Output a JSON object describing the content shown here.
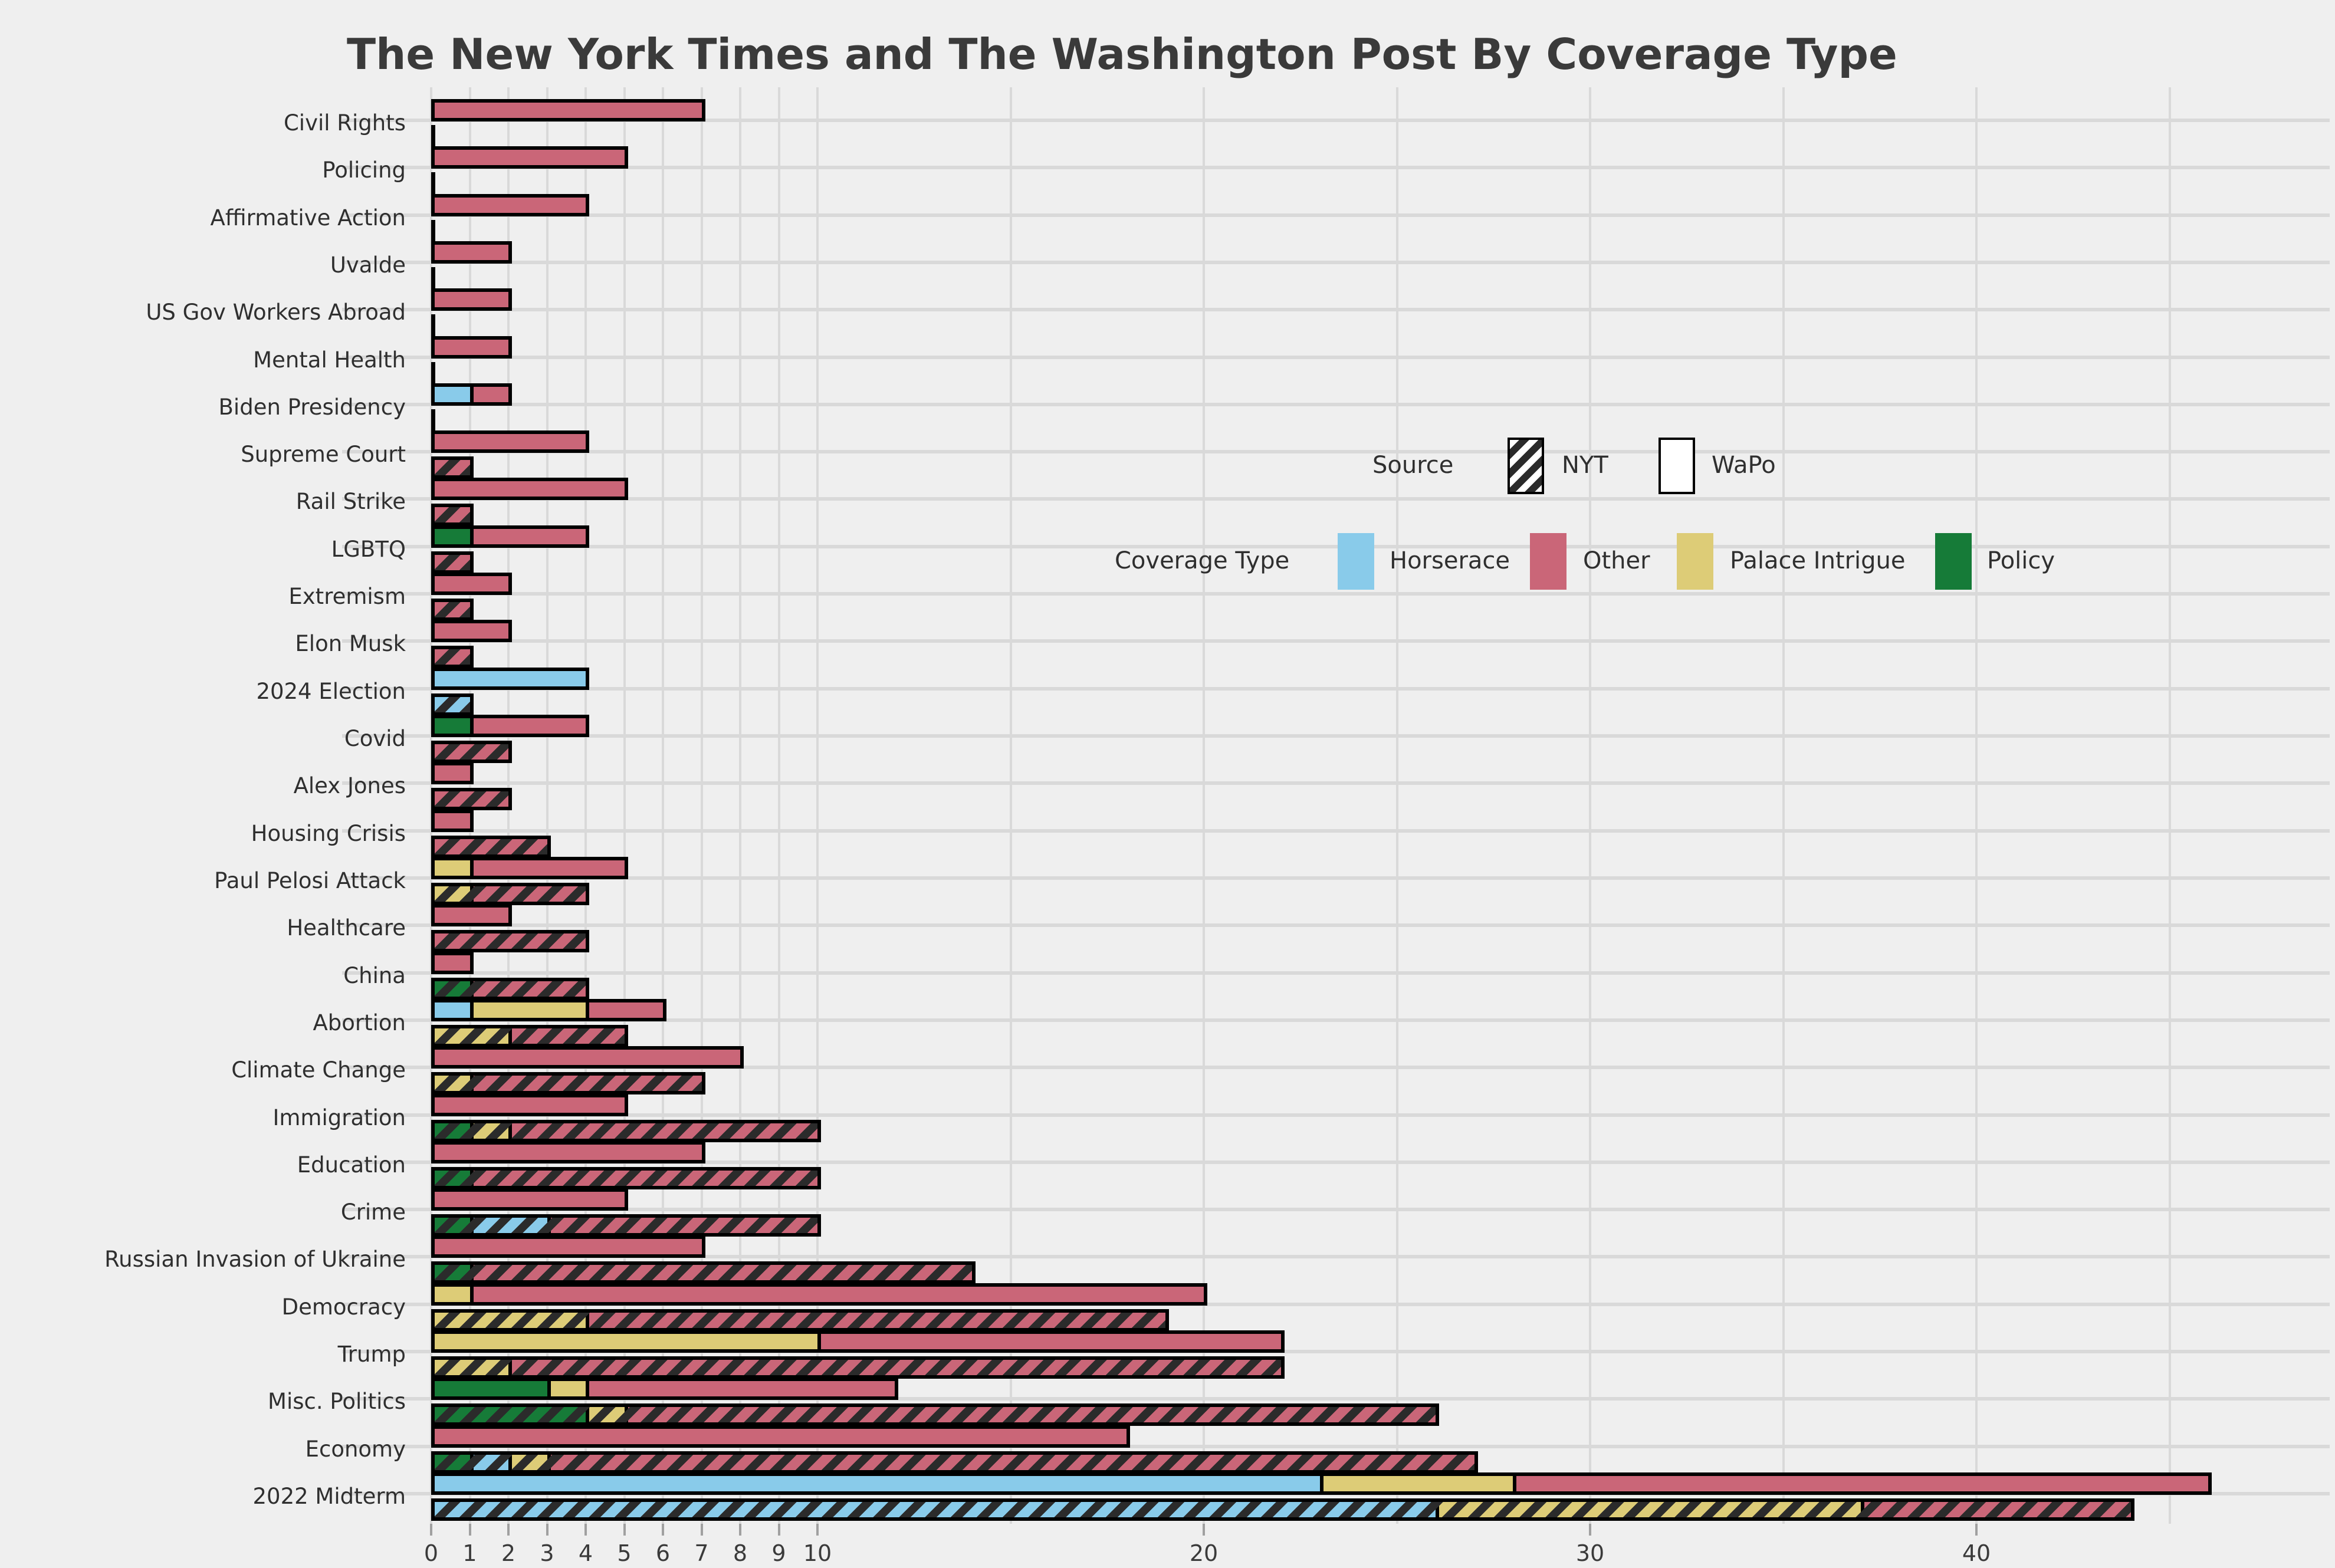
{
  "title": "The New York Times and The Washington Post By Coverage Type",
  "source_legend": {
    "label": "Source",
    "items": [
      {
        "name": "NYT",
        "style": "hatched"
      },
      {
        "name": "WaPo",
        "style": "plain"
      }
    ]
  },
  "coverage_legend": {
    "label": "Coverage Type",
    "items": [
      {
        "key": "horserace",
        "name": "Horserace",
        "color": "#89cbea"
      },
      {
        "key": "other",
        "name": "Other",
        "color": "#ca6678"
      },
      {
        "key": "palace_intrigue",
        "name": "Palace Intrigue",
        "color": "#ddcc77"
      },
      {
        "key": "policy",
        "name": "Policy",
        "color": "#167b38"
      }
    ]
  },
  "x_axis": {
    "tick_labels": [
      "0",
      "1",
      "2",
      "3",
      "4",
      "5",
      "6",
      "7",
      "8",
      "9",
      "10",
      "20",
      "30",
      "40"
    ],
    "tick_values": [
      0,
      1,
      2,
      3,
      4,
      5,
      6,
      7,
      8,
      9,
      10,
      20,
      30,
      40
    ],
    "minor_gridlines": [
      15,
      25,
      35,
      45
    ]
  },
  "chart_data": {
    "type": "bar",
    "orientation": "horizontal",
    "title": "The New York Times and The Washington Post By Coverage Type",
    "xlabel": "",
    "ylabel": "",
    "xlim": [
      0,
      48.5
    ],
    "grid": true,
    "stack_order": [
      "policy",
      "horserace",
      "palace_intrigue",
      "other"
    ],
    "series_colors": {
      "horserace": "#89cbea",
      "other": "#ca6678",
      "palace_intrigue": "#ddcc77",
      "policy": "#167b38"
    },
    "bar_groups": [
      "WaPo (solid, top bar)",
      "NYT (hatched, bottom bar)"
    ],
    "categories": [
      {
        "label": "Civil Rights",
        "wapo": {
          "other": 7
        },
        "nyt": {}
      },
      {
        "label": "Policing",
        "wapo": {
          "other": 5
        },
        "nyt": {}
      },
      {
        "label": "Affirmative Action",
        "wapo": {
          "other": 4
        },
        "nyt": {}
      },
      {
        "label": "Uvalde",
        "wapo": {
          "other": 2
        },
        "nyt": {}
      },
      {
        "label": "US Gov Workers Abroad",
        "wapo": {
          "other": 2
        },
        "nyt": {}
      },
      {
        "label": "Mental Health",
        "wapo": {
          "other": 2
        },
        "nyt": {}
      },
      {
        "label": "Biden Presidency",
        "wapo": {
          "horserace": 1,
          "other": 1
        },
        "nyt": {}
      },
      {
        "label": "Supreme Court",
        "wapo": {
          "other": 4
        },
        "nyt": {
          "other": 1
        }
      },
      {
        "label": "Rail Strike",
        "wapo": {
          "other": 5
        },
        "nyt": {
          "other": 1
        }
      },
      {
        "label": "LGBTQ",
        "wapo": {
          "policy": 1,
          "other": 3
        },
        "nyt": {
          "other": 1
        }
      },
      {
        "label": "Extremism",
        "wapo": {
          "other": 2
        },
        "nyt": {
          "other": 1
        }
      },
      {
        "label": "Elon Musk",
        "wapo": {
          "other": 2
        },
        "nyt": {
          "other": 1
        }
      },
      {
        "label": "2024 Election",
        "wapo": {
          "horserace": 4
        },
        "nyt": {
          "horserace": 1
        }
      },
      {
        "label": "Covid",
        "wapo": {
          "policy": 1,
          "other": 3
        },
        "nyt": {
          "other": 2
        }
      },
      {
        "label": "Alex Jones",
        "wapo": {
          "other": 1
        },
        "nyt": {
          "other": 2
        }
      },
      {
        "label": "Housing Crisis",
        "wapo": {
          "other": 1
        },
        "nyt": {
          "other": 3
        }
      },
      {
        "label": "Paul Pelosi Attack",
        "wapo": {
          "palace_intrigue": 1,
          "other": 4
        },
        "nyt": {
          "palace_intrigue": 1,
          "other": 3
        }
      },
      {
        "label": "Healthcare",
        "wapo": {
          "other": 2
        },
        "nyt": {
          "other": 4
        }
      },
      {
        "label": "China",
        "wapo": {
          "other": 1
        },
        "nyt": {
          "policy": 1,
          "other": 3
        }
      },
      {
        "label": "Abortion",
        "wapo": {
          "horserace": 1,
          "palace_intrigue": 3,
          "other": 2
        },
        "nyt": {
          "palace_intrigue": 2,
          "other": 3
        }
      },
      {
        "label": "Climate Change",
        "wapo": {
          "other": 8
        },
        "nyt": {
          "palace_intrigue": 1,
          "other": 6
        }
      },
      {
        "label": "Immigration",
        "wapo": {
          "other": 5
        },
        "nyt": {
          "policy": 1,
          "palace_intrigue": 1,
          "other": 8
        }
      },
      {
        "label": "Education",
        "wapo": {
          "other": 7
        },
        "nyt": {
          "policy": 1,
          "other": 9
        }
      },
      {
        "label": "Crime",
        "wapo": {
          "other": 5
        },
        "nyt": {
          "policy": 1,
          "horserace": 2,
          "other": 7
        }
      },
      {
        "label": "Russian Invasion of Ukraine",
        "wapo": {
          "other": 7
        },
        "nyt": {
          "policy": 1,
          "other": 13
        }
      },
      {
        "label": "Democracy",
        "wapo": {
          "palace_intrigue": 1,
          "other": 19
        },
        "nyt": {
          "palace_intrigue": 4,
          "other": 15
        }
      },
      {
        "label": "Trump",
        "wapo": {
          "palace_intrigue": 10,
          "other": 12
        },
        "nyt": {
          "palace_intrigue": 2,
          "other": 20
        }
      },
      {
        "label": "Misc. Politics",
        "wapo": {
          "policy": 3,
          "palace_intrigue": 1,
          "other": 8
        },
        "nyt": {
          "policy": 4,
          "palace_intrigue": 1,
          "other": 21
        }
      },
      {
        "label": "Economy",
        "wapo": {
          "other": 18
        },
        "nyt": {
          "policy": 1,
          "horserace": 1,
          "palace_intrigue": 1,
          "other": 24
        }
      },
      {
        "label": "2022 Midterm",
        "wapo": {
          "horserace": 23,
          "palace_intrigue": 5,
          "other": 18
        },
        "nyt": {
          "horserace": 26,
          "palace_intrigue": 11,
          "other": 7
        }
      }
    ]
  }
}
